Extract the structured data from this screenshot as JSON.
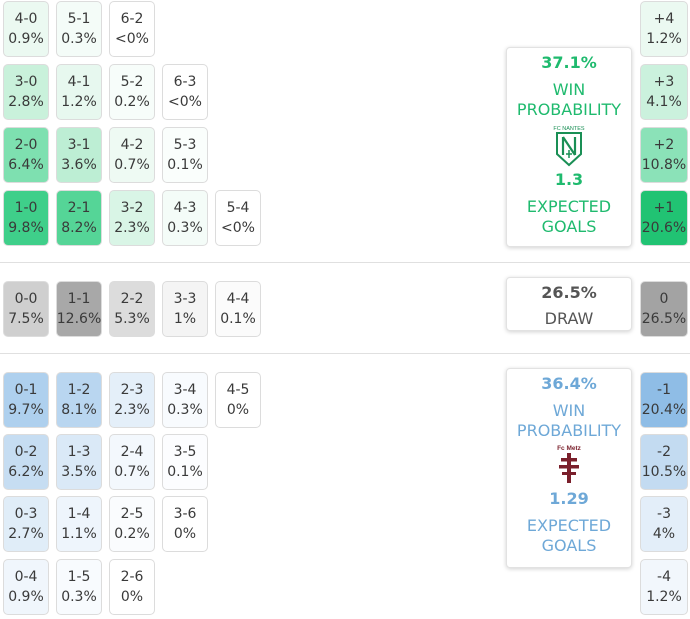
{
  "colors": {
    "home_accent": "#1fba6e",
    "away_accent": "#6ea8d7",
    "draw_accent": "#555555"
  },
  "home": {
    "win_pct": "37.1%",
    "win_label_line1": "WIN",
    "win_label_line2": "PROBABILITY",
    "team_name": "FC NANTES",
    "xg_value": "1.3",
    "xg_label_line1": "EXPECTED",
    "xg_label_line2": "GOALS",
    "grid": [
      [
        {
          "score": "1-0",
          "prob": "9.8%",
          "bg": "#3fcf8a"
        },
        {
          "score": "2-1",
          "prob": "8.2%",
          "bg": "#55d597"
        },
        {
          "score": "3-2",
          "prob": "2.3%",
          "bg": "#d9f5e6"
        },
        {
          "score": "4-3",
          "prob": "0.3%",
          "bg": "#f4fcf8"
        },
        {
          "score": "5-4",
          "prob": "<0%",
          "bg": "#ffffff"
        }
      ],
      [
        {
          "score": "2-0",
          "prob": "6.4%",
          "bg": "#7ee0b0"
        },
        {
          "score": "3-1",
          "prob": "3.6%",
          "bg": "#bdeed4"
        },
        {
          "score": "4-2",
          "prob": "0.7%",
          "bg": "#eefaf3"
        },
        {
          "score": "5-3",
          "prob": "0.1%",
          "bg": "#fafefc"
        }
      ],
      [
        {
          "score": "3-0",
          "prob": "2.8%",
          "bg": "#c9f1db"
        },
        {
          "score": "4-1",
          "prob": "1.2%",
          "bg": "#e7f8ef"
        },
        {
          "score": "5-2",
          "prob": "0.2%",
          "bg": "#f7fdfa"
        },
        {
          "score": "6-3",
          "prob": "<0%",
          "bg": "#ffffff"
        }
      ],
      [
        {
          "score": "4-0",
          "prob": "0.9%",
          "bg": "#ebf9f1"
        },
        {
          "score": "5-1",
          "prob": "0.3%",
          "bg": "#f4fcf8"
        },
        {
          "score": "6-2",
          "prob": "<0%",
          "bg": "#ffffff"
        }
      ]
    ],
    "margins": [
      {
        "margin": "+1",
        "prob": "20.6%",
        "bg": "#21c373"
      },
      {
        "margin": "+2",
        "prob": "10.8%",
        "bg": "#8be2b8"
      },
      {
        "margin": "+3",
        "prob": "4.1%",
        "bg": "#cbf1dd"
      },
      {
        "margin": "+4",
        "prob": "1.2%",
        "bg": "#ebf9f1"
      }
    ]
  },
  "draw": {
    "pct": "26.5%",
    "label": "DRAW",
    "grid": [
      {
        "score": "0-0",
        "prob": "7.5%",
        "bg": "#cfcfcf"
      },
      {
        "score": "1-1",
        "prob": "12.6%",
        "bg": "#a8a8a8"
      },
      {
        "score": "2-2",
        "prob": "5.3%",
        "bg": "#dcdcdc"
      },
      {
        "score": "3-3",
        "prob": "1%",
        "bg": "#f4f4f4"
      },
      {
        "score": "4-4",
        "prob": "0.1%",
        "bg": "#fbfbfb"
      }
    ],
    "margin": {
      "margin": "0",
      "prob": "26.5%",
      "bg": "#a3a3a3"
    }
  },
  "away": {
    "win_pct": "36.4%",
    "win_label_line1": "WIN",
    "win_label_line2": "PROBABILITY",
    "team_name": "Fc Metz",
    "xg_value": "1.29",
    "xg_label_line1": "EXPECTED",
    "xg_label_line2": "GOALS",
    "grid": [
      [
        {
          "score": "0-1",
          "prob": "9.7%",
          "bg": "#aed0ee"
        },
        {
          "score": "1-2",
          "prob": "8.1%",
          "bg": "#b9d6f0"
        },
        {
          "score": "2-3",
          "prob": "2.3%",
          "bg": "#e4eff9"
        },
        {
          "score": "3-4",
          "prob": "0.3%",
          "bg": "#f8fbfe"
        },
        {
          "score": "4-5",
          "prob": "0%",
          "bg": "#ffffff"
        }
      ],
      [
        {
          "score": "0-2",
          "prob": "6.2%",
          "bg": "#c6ddf2"
        },
        {
          "score": "1-3",
          "prob": "3.5%",
          "bg": "#dae9f7"
        },
        {
          "score": "2-4",
          "prob": "0.7%",
          "bg": "#f3f8fd"
        },
        {
          "score": "3-5",
          "prob": "0.1%",
          "bg": "#fcfdff"
        }
      ],
      [
        {
          "score": "0-3",
          "prob": "2.7%",
          "bg": "#e0edf8"
        },
        {
          "score": "1-4",
          "prob": "1.1%",
          "bg": "#eef5fc"
        },
        {
          "score": "2-5",
          "prob": "0.2%",
          "bg": "#fafcfe"
        },
        {
          "score": "3-6",
          "prob": "0%",
          "bg": "#ffffff"
        }
      ],
      [
        {
          "score": "0-4",
          "prob": "0.9%",
          "bg": "#f0f6fc"
        },
        {
          "score": "1-5",
          "prob": "0.3%",
          "bg": "#f8fbfe"
        },
        {
          "score": "2-6",
          "prob": "0%",
          "bg": "#ffffff"
        }
      ]
    ],
    "margins": [
      {
        "margin": "-1",
        "prob": "20.4%",
        "bg": "#8fbde6"
      },
      {
        "margin": "-2",
        "prob": "10.5%",
        "bg": "#c3dbf1"
      },
      {
        "margin": "-3",
        "prob": "4%",
        "bg": "#e3eef9"
      },
      {
        "margin": "-4",
        "prob": "1.2%",
        "bg": "#f2f7fc"
      }
    ]
  }
}
